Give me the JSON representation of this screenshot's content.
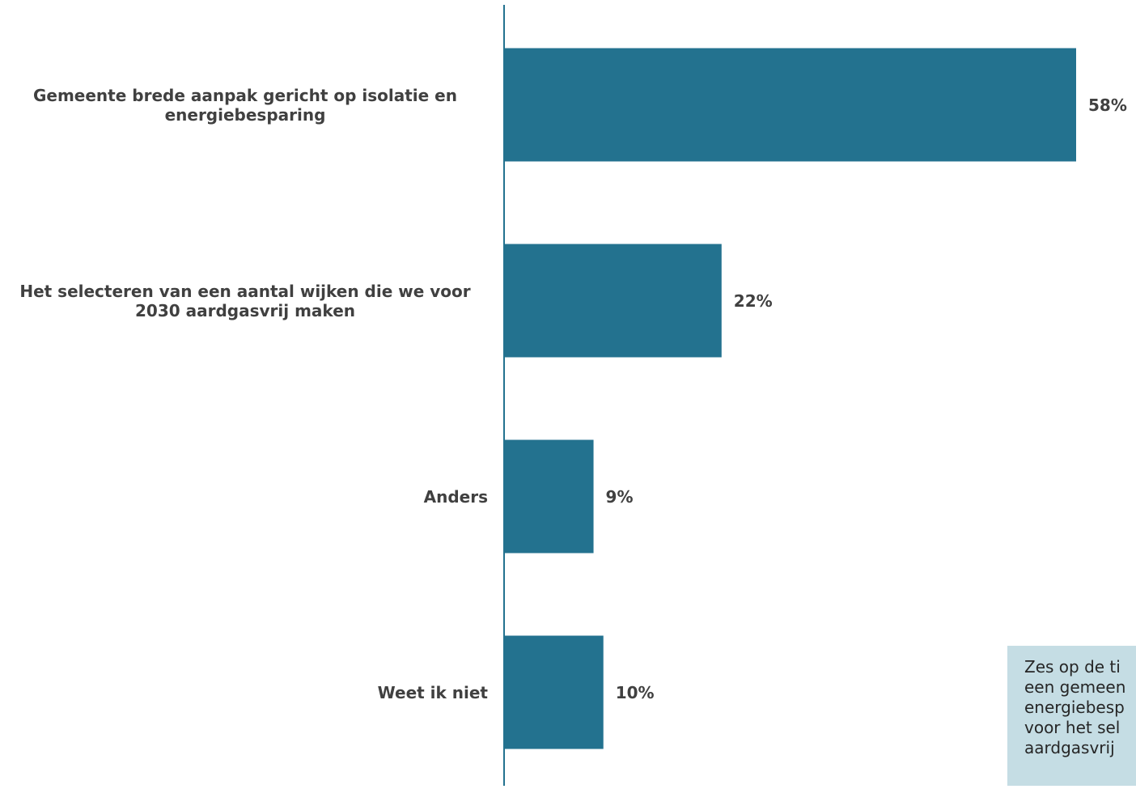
{
  "chart_data": {
    "type": "bar",
    "orientation": "horizontal",
    "categories": [
      "Gemeente brede aanpak gericht op isolatie en energiebesparing",
      "Het selecteren van een aantal wijken die we voor 2030 aardgasvrij maken",
      "Anders",
      "Weet ik niet"
    ],
    "values": [
      58,
      22,
      9,
      10
    ],
    "value_labels": [
      "58%",
      "22%",
      "9%",
      "10%"
    ],
    "unit": "%",
    "xlim": [
      0,
      60
    ],
    "grid": false,
    "legend": "none",
    "bar_color": "#23728f",
    "axis_color": "#23728f"
  },
  "callout": {
    "lines": [
      "Zes op de ti",
      "een gemeen",
      "energiebesp",
      "voor het sel",
      "aardgasvrij"
    ],
    "background": "#c5dde4"
  }
}
